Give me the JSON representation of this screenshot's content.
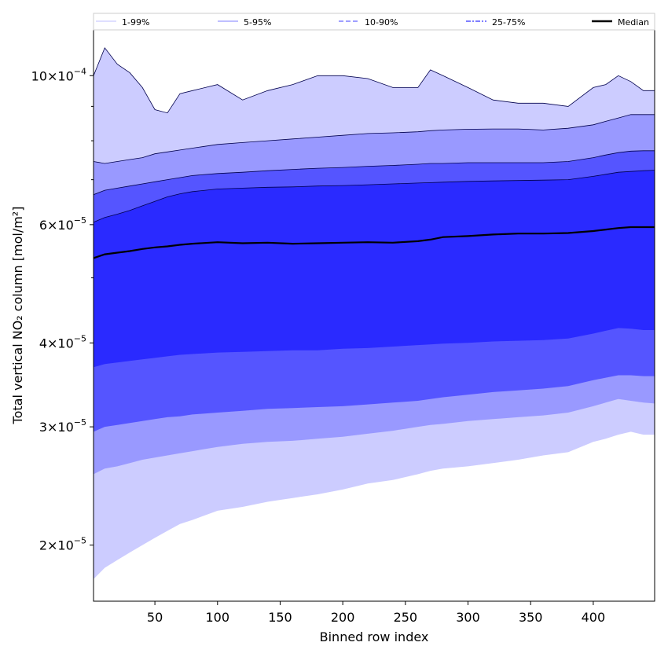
{
  "chart_data": {
    "type": "area",
    "xlabel": "Binned row index",
    "ylabel": "Total vertical NO₂ column [mol/m²]",
    "xlim": [
      1,
      449
    ],
    "ylim": [
      1.65e-05,
      0.000117
    ],
    "yscale": "log",
    "grid": false,
    "legend_position": "top",
    "xticks": [
      50,
      100,
      150,
      200,
      250,
      300,
      350,
      400
    ],
    "yticks": [
      {
        "value": 2e-05,
        "mant": "2",
        "exp": "−5"
      },
      {
        "value": 3e-05,
        "mant": "3",
        "exp": "−5"
      },
      {
        "value": 4e-05,
        "mant": "4",
        "exp": "−5"
      },
      {
        "value": 6e-05,
        "mant": "6",
        "exp": "−5"
      },
      {
        "value": 0.0001,
        "mant": "10",
        "exp": "−4"
      }
    ],
    "legend": [
      {
        "label": "1-99%",
        "color": "#ccccff",
        "dash": "solid"
      },
      {
        "label": "5-95%",
        "color": "#9999ff",
        "dash": "solid"
      },
      {
        "label": "10-90%",
        "color": "#6666ff",
        "dash": "dashed"
      },
      {
        "label": "25-75%",
        "color": "#3333ff",
        "dash": "dashdot"
      },
      {
        "label": "Median",
        "color": "#000000",
        "dash": "solid"
      }
    ],
    "x": [
      1,
      10,
      20,
      30,
      40,
      50,
      60,
      70,
      80,
      100,
      120,
      140,
      160,
      180,
      200,
      220,
      240,
      260,
      270,
      280,
      300,
      320,
      340,
      360,
      380,
      400,
      410,
      420,
      430,
      440,
      449
    ],
    "bands": [
      {
        "name": "1-99%",
        "color": "#ccccff",
        "lower": [
          1.78e-05,
          1.85e-05,
          1.9e-05,
          1.95e-05,
          2e-05,
          2.05e-05,
          2.1e-05,
          2.15e-05,
          2.18e-05,
          2.25e-05,
          2.28e-05,
          2.32e-05,
          2.35e-05,
          2.38e-05,
          2.42e-05,
          2.47e-05,
          2.5e-05,
          2.55e-05,
          2.58e-05,
          2.6e-05,
          2.62e-05,
          2.65e-05,
          2.68e-05,
          2.72e-05,
          2.75e-05,
          2.85e-05,
          2.88e-05,
          2.92e-05,
          2.95e-05,
          2.92e-05,
          2.92e-05
        ],
        "upper": [
          0.0001,
          0.00011,
          0.000104,
          0.000101,
          9.6e-05,
          8.9e-05,
          8.8e-05,
          9.4e-05,
          9.5e-05,
          9.7e-05,
          9.2e-05,
          9.5e-05,
          9.7e-05,
          0.0001,
          0.0001,
          9.9e-05,
          9.6e-05,
          9.6e-05,
          0.000102,
          0.0001,
          9.6e-05,
          9.2e-05,
          9.1e-05,
          9.1e-05,
          9e-05,
          9.6e-05,
          9.7e-05,
          0.0001,
          9.8e-05,
          9.5e-05,
          9.5e-05
        ]
      },
      {
        "name": "5-95%",
        "color": "#9999ff",
        "lower": [
          2.55e-05,
          2.6e-05,
          2.62e-05,
          2.65e-05,
          2.68e-05,
          2.7e-05,
          2.72e-05,
          2.74e-05,
          2.76e-05,
          2.8e-05,
          2.83e-05,
          2.85e-05,
          2.86e-05,
          2.88e-05,
          2.9e-05,
          2.93e-05,
          2.96e-05,
          3e-05,
          3.02e-05,
          3.03e-05,
          3.06e-05,
          3.08e-05,
          3.1e-05,
          3.12e-05,
          3.15e-05,
          3.22e-05,
          3.26e-05,
          3.3e-05,
          3.28e-05,
          3.26e-05,
          3.25e-05
        ],
        "upper": [
          7.45e-05,
          7.4e-05,
          7.45e-05,
          7.5e-05,
          7.55e-05,
          7.65e-05,
          7.7e-05,
          7.75e-05,
          7.8e-05,
          7.9e-05,
          7.95e-05,
          8e-05,
          8.05e-05,
          8.1e-05,
          8.15e-05,
          8.2e-05,
          8.22e-05,
          8.25e-05,
          8.28e-05,
          8.3e-05,
          8.32e-05,
          8.33e-05,
          8.33e-05,
          8.3e-05,
          8.35e-05,
          8.45e-05,
          8.55e-05,
          8.65e-05,
          8.75e-05,
          8.75e-05,
          8.75e-05
        ]
      },
      {
        "name": "10-90%",
        "color": "#5555ff",
        "lower": [
          2.95e-05,
          3e-05,
          3.02e-05,
          3.04e-05,
          3.06e-05,
          3.08e-05,
          3.1e-05,
          3.11e-05,
          3.13e-05,
          3.15e-05,
          3.17e-05,
          3.19e-05,
          3.2e-05,
          3.21e-05,
          3.22e-05,
          3.24e-05,
          3.26e-05,
          3.28e-05,
          3.3e-05,
          3.32e-05,
          3.35e-05,
          3.38e-05,
          3.4e-05,
          3.42e-05,
          3.45e-05,
          3.52e-05,
          3.55e-05,
          3.58e-05,
          3.58e-05,
          3.57e-05,
          3.57e-05
        ],
        "upper": [
          6.65e-05,
          6.75e-05,
          6.8e-05,
          6.85e-05,
          6.9e-05,
          6.95e-05,
          7e-05,
          7.05e-05,
          7.1e-05,
          7.15e-05,
          7.18e-05,
          7.22e-05,
          7.25e-05,
          7.28e-05,
          7.3e-05,
          7.33e-05,
          7.35e-05,
          7.38e-05,
          7.4e-05,
          7.4e-05,
          7.42e-05,
          7.42e-05,
          7.42e-05,
          7.42e-05,
          7.45e-05,
          7.55e-05,
          7.62e-05,
          7.68e-05,
          7.72e-05,
          7.73e-05,
          7.73e-05
        ]
      },
      {
        "name": "25-75%",
        "color": "#2a2aff",
        "lower": [
          3.68e-05,
          3.72e-05,
          3.74e-05,
          3.76e-05,
          3.78e-05,
          3.8e-05,
          3.82e-05,
          3.84e-05,
          3.85e-05,
          3.87e-05,
          3.88e-05,
          3.89e-05,
          3.9e-05,
          3.9e-05,
          3.92e-05,
          3.93e-05,
          3.95e-05,
          3.97e-05,
          3.98e-05,
          3.99e-05,
          4e-05,
          4.02e-05,
          4.03e-05,
          4.04e-05,
          4.06e-05,
          4.13e-05,
          4.17e-05,
          4.21e-05,
          4.2e-05,
          4.18e-05,
          4.18e-05
        ],
        "upper": [
          6.05e-05,
          6.15e-05,
          6.22e-05,
          6.3e-05,
          6.4e-05,
          6.5e-05,
          6.6e-05,
          6.67e-05,
          6.72e-05,
          6.78e-05,
          6.8e-05,
          6.82e-05,
          6.83e-05,
          6.85e-05,
          6.86e-05,
          6.88e-05,
          6.9e-05,
          6.92e-05,
          6.93e-05,
          6.94e-05,
          6.96e-05,
          6.97e-05,
          6.98e-05,
          6.99e-05,
          7e-05,
          7.08e-05,
          7.13e-05,
          7.18e-05,
          7.2e-05,
          7.22e-05,
          7.23e-05
        ]
      }
    ],
    "median": {
      "name": "Median",
      "color": "#000000",
      "values": [
        5.35e-05,
        5.42e-05,
        5.45e-05,
        5.48e-05,
        5.52e-05,
        5.55e-05,
        5.57e-05,
        5.6e-05,
        5.62e-05,
        5.65e-05,
        5.63e-05,
        5.64e-05,
        5.62e-05,
        5.63e-05,
        5.64e-05,
        5.65e-05,
        5.64e-05,
        5.67e-05,
        5.7e-05,
        5.75e-05,
        5.77e-05,
        5.8e-05,
        5.82e-05,
        5.82e-05,
        5.83e-05,
        5.87e-05,
        5.9e-05,
        5.93e-05,
        5.95e-05,
        5.95e-05,
        5.95e-05
      ]
    }
  }
}
